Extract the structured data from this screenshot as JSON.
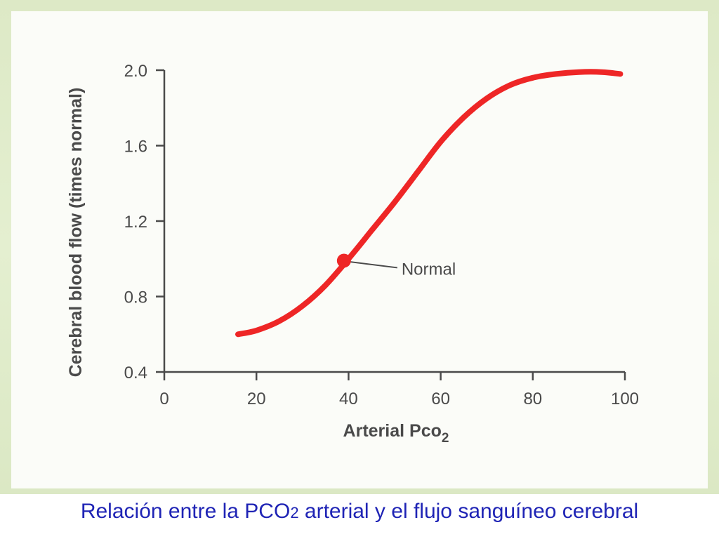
{
  "chart_data": {
    "type": "line",
    "title": "",
    "xlabel": "Arterial Pco",
    "xlabel_subscript": "2",
    "ylabel": "Cerebral blood flow (times normal)",
    "xlim": [
      0,
      100
    ],
    "ylim": [
      0.4,
      2.0
    ],
    "x_ticks": [
      "0",
      "20",
      "40",
      "60",
      "80",
      "100"
    ],
    "y_ticks": [
      "0.4",
      "0.8",
      "1.2",
      "1.6",
      "2.0"
    ],
    "grid": false,
    "series": [
      {
        "color": "#ee2626",
        "x": [
          16,
          20,
          25,
          30,
          35,
          40,
          45,
          50,
          55,
          60,
          65,
          70,
          75,
          80,
          85,
          90,
          95,
          99
        ],
        "values": [
          0.6,
          0.62,
          0.67,
          0.75,
          0.86,
          1.0,
          1.15,
          1.3,
          1.46,
          1.62,
          1.75,
          1.85,
          1.92,
          1.96,
          1.98,
          1.99,
          1.99,
          1.98
        ]
      }
    ],
    "annotations": [
      {
        "label": "Normal",
        "x": 39,
        "y": 0.99
      }
    ]
  },
  "caption": {
    "prefix": "Relación entre la PCO",
    "subscript": "2",
    "suffix": " arterial y el flujo sanguíneo cerebral"
  },
  "colors": {
    "curve": "#ee2626",
    "caption": "#1f24b5",
    "axis": "#4a4a4a"
  }
}
